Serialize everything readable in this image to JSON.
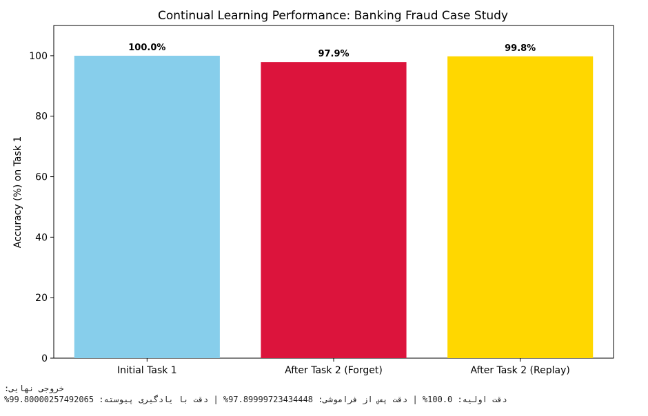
{
  "chart_data": {
    "type": "bar",
    "title": "Continual Learning Performance: Banking Fraud Case Study",
    "xlabel": "",
    "ylabel": "Accuracy (%) on Task 1",
    "categories": [
      "Initial Task 1",
      "After Task 2 (Forget)",
      "After Task 2 (Replay)"
    ],
    "values": [
      100.0,
      97.9,
      99.8
    ],
    "value_labels": [
      "100.0%",
      "97.9%",
      "99.8%"
    ],
    "colors": [
      "#87CEEB",
      "#DC143C",
      "#FFD700"
    ],
    "ylim": [
      0,
      110
    ],
    "yticks": [
      0,
      20,
      40,
      60,
      80,
      100
    ],
    "grid": false,
    "legend": "none"
  },
  "console": {
    "heading": "خروجی نهایی:",
    "summary": "%دقت اولیه: 100.0% | دقت پس از فراموشی: 97.89999723434448% | دقت با یادگیری پیوسته: 99.80000257492065"
  }
}
